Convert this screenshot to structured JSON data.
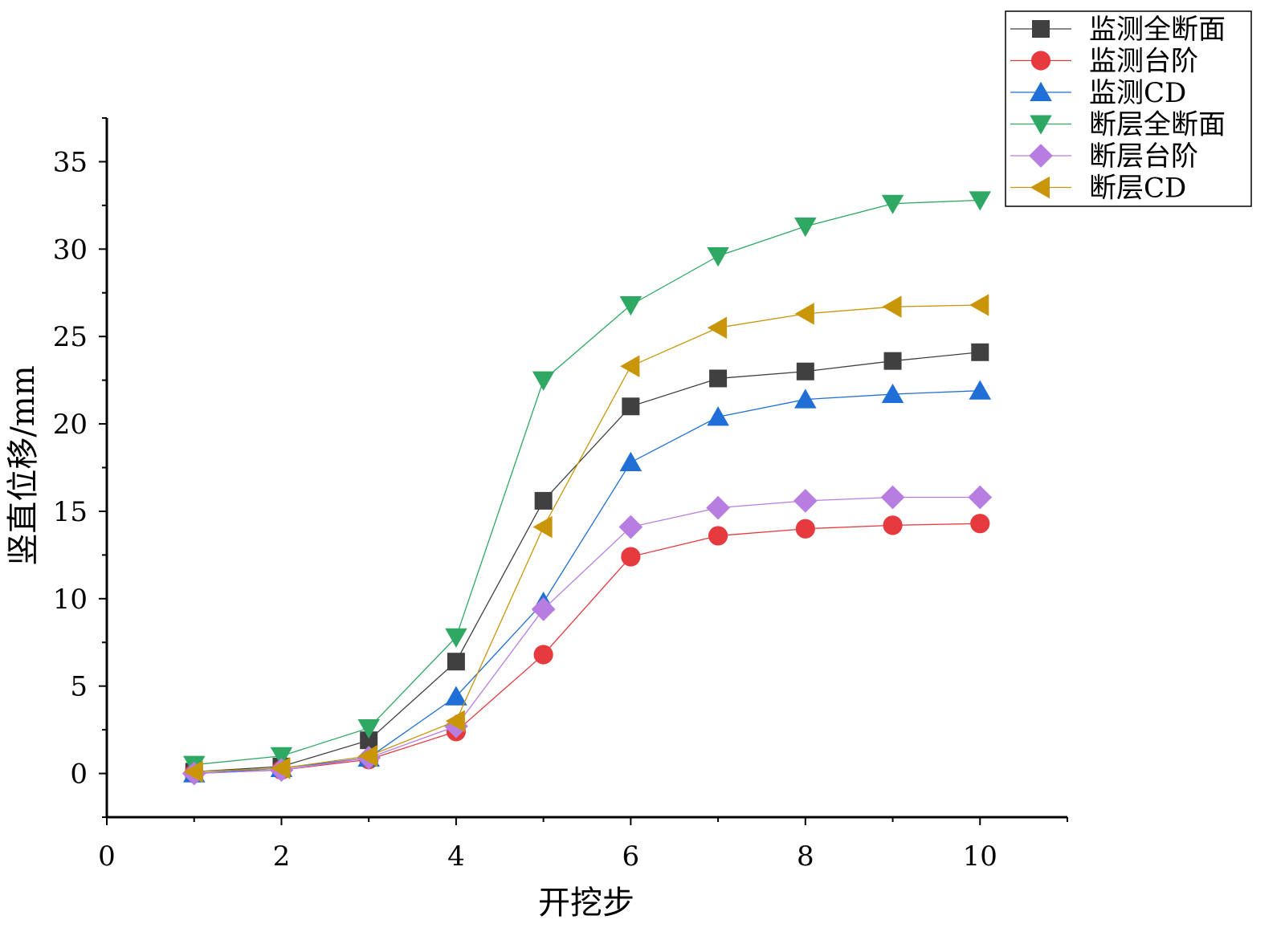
{
  "chart_data": {
    "type": "line",
    "xlabel": "开挖步",
    "ylabel": "竖直位移/mm",
    "xlim": [
      0,
      11
    ],
    "ylim": [
      -2.5,
      37.5
    ],
    "x_ticks": [
      0,
      2,
      4,
      6,
      8,
      10
    ],
    "y_ticks": [
      0,
      5,
      10,
      15,
      20,
      25,
      30,
      35
    ],
    "grid": false,
    "legend_position": "top-right",
    "x": [
      1,
      2,
      3,
      4,
      5,
      6,
      7,
      8,
      9,
      10
    ],
    "series": [
      {
        "name": "监测全断面",
        "marker": "square",
        "color": "#404040",
        "values": [
          0.1,
          0.4,
          1.9,
          6.4,
          15.6,
          21.0,
          22.6,
          23.0,
          23.6,
          24.1
        ]
      },
      {
        "name": "监测台阶",
        "marker": "circle",
        "color": "#e63a3f",
        "values": [
          0.0,
          0.2,
          0.8,
          2.4,
          6.8,
          12.4,
          13.6,
          14.0,
          14.2,
          14.3
        ]
      },
      {
        "name": "监测CD",
        "marker": "triangle-up",
        "color": "#1f6fd6",
        "values": [
          0.0,
          0.3,
          0.9,
          4.4,
          9.8,
          17.8,
          20.4,
          21.4,
          21.7,
          21.9
        ]
      },
      {
        "name": "断层全断面",
        "marker": "triangle-down",
        "color": "#2fa863",
        "values": [
          0.5,
          1.0,
          2.6,
          7.8,
          22.5,
          26.8,
          29.6,
          31.3,
          32.6,
          32.8
        ]
      },
      {
        "name": "断层台阶",
        "marker": "diamond",
        "color": "#b77de0",
        "values": [
          0.0,
          0.2,
          0.9,
          2.7,
          9.4,
          14.1,
          15.2,
          15.6,
          15.8,
          15.8
        ]
      },
      {
        "name": "断层CD",
        "marker": "triangle-left",
        "color": "#c9960a",
        "values": [
          0.1,
          0.3,
          1.0,
          3.0,
          14.1,
          23.3,
          25.5,
          26.3,
          26.7,
          26.8
        ]
      }
    ]
  }
}
